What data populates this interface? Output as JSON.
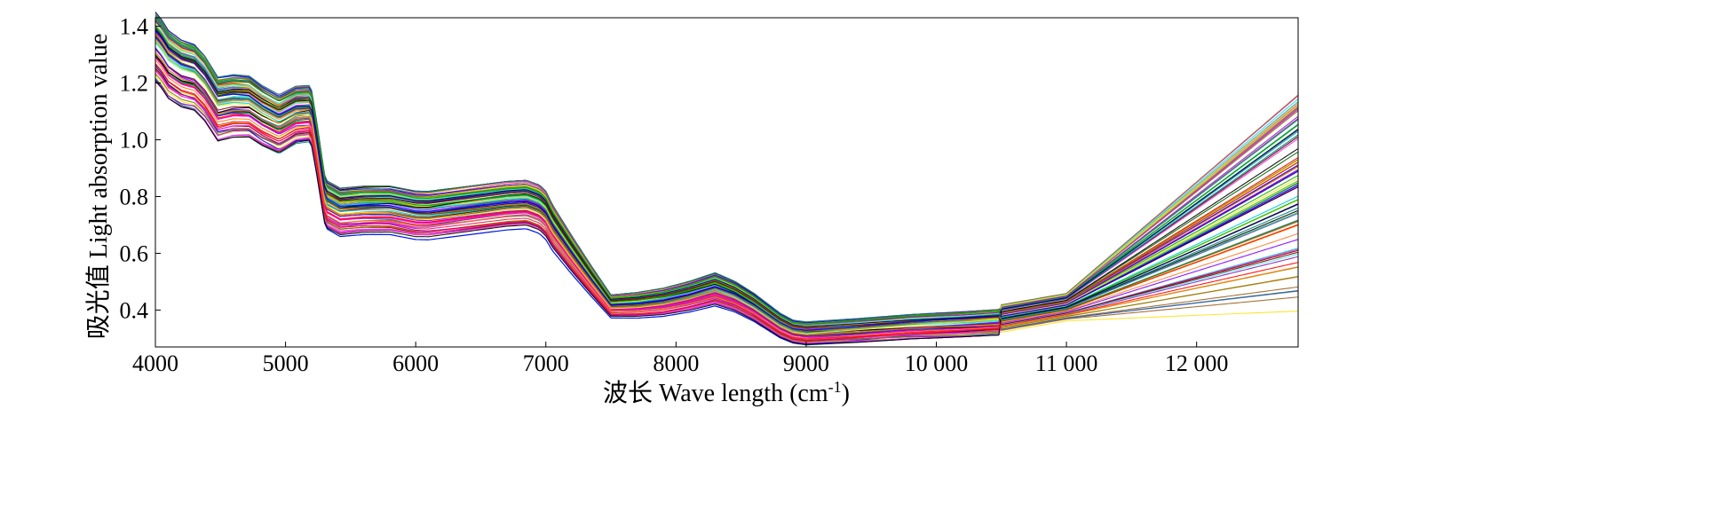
{
  "chart_data": {
    "type": "line",
    "title": "",
    "xlabel": "波长 Wave length (cm",
    "xlabel_sup": "-1",
    "xlabel_close": ")",
    "ylabel": "吸光值 Light absorption value",
    "xlim": [
      4000,
      12780
    ],
    "ylim": [
      0.27,
      1.43
    ],
    "x_ticks": [
      {
        "value": 4000,
        "label": "4000"
      },
      {
        "value": 5000,
        "label": "5000"
      },
      {
        "value": 6000,
        "label": "6000"
      },
      {
        "value": 7000,
        "label": "7000"
      },
      {
        "value": 8000,
        "label": "8000"
      },
      {
        "value": 9000,
        "label": "9000"
      },
      {
        "value": 10000,
        "label": "10 000"
      },
      {
        "value": 11000,
        "label": "11 000"
      },
      {
        "value": 12000,
        "label": "12 000"
      }
    ],
    "y_ticks": [
      {
        "value": 0.4,
        "label": "0.4"
      },
      {
        "value": 0.6,
        "label": "0.6"
      },
      {
        "value": 0.8,
        "label": "0.8"
      },
      {
        "value": 1.0,
        "label": "1.0"
      },
      {
        "value": 1.2,
        "label": "1.2"
      },
      {
        "value": 1.4,
        "label": "1.4"
      }
    ],
    "grid": false,
    "legend": "none",
    "series_count": 90,
    "base_spectrum": {
      "x": [
        4000,
        4050,
        4100,
        4200,
        4300,
        4380,
        4480,
        4600,
        4720,
        4820,
        4950,
        5080,
        5180,
        5230,
        5320,
        5420,
        5600,
        5800,
        6000,
        6100,
        6300,
        6500,
        6700,
        6850,
        6950,
        7050,
        7200,
        7350,
        7500,
        7700,
        7900,
        8100,
        8300,
        8450,
        8600,
        8800,
        9000,
        9400,
        9800,
        10200,
        10600,
        11000,
        11500,
        12000,
        12400,
        12780
      ],
      "y": [
        1.37,
        1.32,
        1.25,
        1.2,
        1.19,
        1.12,
        0.98,
        1.03,
        1.05,
        1.0,
        0.96,
        1.06,
        1.09,
        1.01,
        0.8,
        0.74,
        0.75,
        0.745,
        0.7,
        0.695,
        0.715,
        0.735,
        0.755,
        0.76,
        0.72,
        0.62,
        0.54,
        0.47,
        0.41,
        0.4,
        0.405,
        0.43,
        0.47,
        0.46,
        0.42,
        0.34,
        0.305,
        0.315,
        0.33,
        0.335,
        0.345,
        0.38,
        0.46,
        0.58,
        0.72,
        0.88
      ]
    },
    "envelope": {
      "x": [
        4000,
        5200,
        5300,
        7000,
        7500,
        8300,
        8900,
        10500,
        11000,
        12780
      ],
      "y_min": [
        1.16,
        0.98,
        0.65,
        0.69,
        0.37,
        0.41,
        0.28,
        0.32,
        0.36,
        0.38
      ],
      "y_max": [
        1.43,
        1.2,
        0.84,
        0.88,
        0.46,
        0.54,
        0.37,
        0.42,
        0.46,
        1.17
      ]
    },
    "palette": [
      "#e6194b",
      "#3cb44b",
      "#ffe119",
      "#4363d8",
      "#f58231",
      "#911eb4",
      "#46f0f0",
      "#f032e6",
      "#bcf60c",
      "#008080",
      "#9a6324",
      "#800000",
      "#808000",
      "#000075",
      "#000000",
      "#ff0000",
      "#00aa00",
      "#0000ff",
      "#ff00ff",
      "#00cccc",
      "#808080",
      "#7f00ff",
      "#ff7f00",
      "#006400"
    ]
  }
}
